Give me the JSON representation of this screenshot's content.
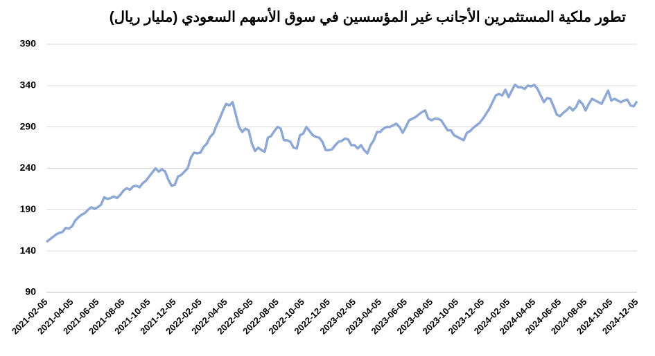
{
  "chart_data": {
    "type": "line",
    "title": "تطور ملكية المستثمرين الأجانب غير المؤسسين في سوق الأسهم السعودي (مليار ريال)",
    "categories": [
      "2021-02-05",
      null,
      null,
      null,
      null,
      null,
      null,
      null,
      "2021-04-05",
      null,
      null,
      null,
      null,
      null,
      null,
      null,
      "2021-06-05",
      null,
      null,
      null,
      null,
      null,
      null,
      null,
      "2021-08-05",
      null,
      null,
      null,
      null,
      null,
      null,
      null,
      "2021-10-05",
      null,
      null,
      null,
      null,
      null,
      null,
      null,
      "2021-12-05",
      null,
      null,
      null,
      null,
      null,
      null,
      null,
      "2022-02-05",
      null,
      null,
      null,
      null,
      null,
      null,
      null,
      "2022-04-05",
      null,
      null,
      null,
      null,
      null,
      null,
      null,
      "2022-06-05",
      null,
      null,
      null,
      null,
      null,
      null,
      null,
      "2022-08-05",
      null,
      null,
      null,
      null,
      null,
      null,
      null,
      "2022-10-05",
      null,
      null,
      null,
      null,
      null,
      null,
      null,
      "2022-12-05",
      null,
      null,
      null,
      null,
      null,
      null,
      null,
      "2023-02-05",
      null,
      null,
      null,
      null,
      null,
      null,
      null,
      "2023-04-05",
      null,
      null,
      null,
      null,
      null,
      null,
      null,
      "2023-06-05",
      null,
      null,
      null,
      null,
      null,
      null,
      null,
      "2023-08-05",
      null,
      null,
      null,
      null,
      null,
      null,
      null,
      "2023-10-05",
      null,
      null,
      null,
      null,
      null,
      null,
      null,
      "2023-12-05",
      null,
      null,
      null,
      null,
      null,
      null,
      null,
      "2024-02-05",
      null,
      null,
      null,
      null,
      null,
      null,
      null,
      "2024-04-05",
      null,
      null,
      null,
      null,
      null,
      null,
      null,
      "2024-06-05",
      null,
      null,
      null,
      null,
      null,
      null,
      null,
      "2024-08-05",
      null,
      null,
      null,
      null,
      null,
      null,
      null,
      "2024-10-05",
      null,
      null,
      null,
      null,
      null,
      null,
      null,
      "2024-12-05"
    ],
    "series": [
      {
        "color": "#8ea8d6",
        "values": [
          151,
          154,
          157,
          160,
          162,
          163,
          168,
          167,
          170,
          177,
          181,
          184,
          186,
          190,
          193,
          191,
          193,
          196,
          205,
          203,
          204,
          206,
          204,
          208,
          213,
          216,
          214,
          218,
          219,
          217,
          222,
          225,
          230,
          235,
          240,
          236,
          239,
          236,
          226,
          219,
          220,
          230,
          232,
          236,
          240,
          253,
          259,
          258,
          259,
          266,
          270,
          278,
          282,
          292,
          300,
          310,
          318,
          316,
          320,
          305,
          290,
          284,
          288,
          286,
          270,
          261,
          265,
          262,
          260,
          277,
          279,
          285,
          290,
          288,
          274,
          274,
          272,
          265,
          264,
          280,
          282,
          290,
          285,
          280,
          278,
          277,
          272,
          262,
          262,
          263,
          268,
          272,
          273,
          276,
          275,
          268,
          268,
          264,
          268,
          262,
          258,
          268,
          274,
          284,
          284,
          288,
          290,
          290,
          292,
          294,
          290,
          283,
          290,
          298,
          300,
          302,
          305,
          308,
          310,
          300,
          298,
          300,
          300,
          298,
          292,
          286,
          286,
          280,
          278,
          276,
          274,
          283,
          285,
          289,
          292,
          295,
          300,
          306,
          312,
          320,
          328,
          330,
          328,
          335,
          326,
          334,
          341,
          338,
          338,
          336,
          340,
          339,
          341,
          336,
          328,
          320,
          325,
          324,
          315,
          305,
          303,
          307,
          310,
          314,
          310,
          314,
          322,
          318,
          310,
          318,
          324,
          322,
          320,
          318,
          326,
          334,
          322,
          324,
          322,
          320,
          322,
          323,
          316,
          315,
          321
        ]
      }
    ],
    "ylim": [
      90,
      390
    ],
    "yticks": [
      90,
      140,
      190,
      240,
      290,
      340,
      390
    ],
    "grid": true
  }
}
